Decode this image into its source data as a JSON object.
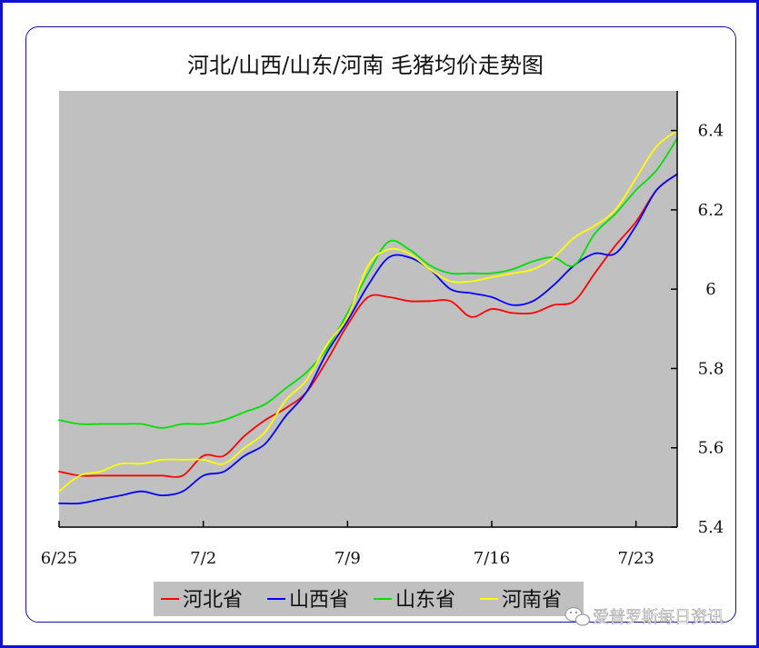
{
  "chart_data": {
    "type": "line",
    "title": "河北/山西/山东/河南 毛猪均价走势图",
    "x": [
      0,
      1,
      2,
      3,
      4,
      5,
      6,
      7,
      8,
      9,
      10,
      11,
      12,
      13,
      14,
      15,
      16,
      17,
      18,
      19,
      20,
      21,
      22,
      23,
      24,
      25,
      26,
      27,
      28,
      29,
      30
    ],
    "x_tick_positions": [
      0,
      7,
      14,
      21,
      28
    ],
    "x_tick_labels": [
      "6/25",
      "7/2",
      "7/9",
      "7/16",
      "7/23"
    ],
    "ylim": [
      5.4,
      6.5
    ],
    "y_ticks": [
      5.4,
      5.6,
      5.8,
      6,
      6.2,
      6.4
    ],
    "y_tick_labels": [
      "5.4",
      "5.6",
      "5.8",
      "6",
      "6.2",
      "6.4"
    ],
    "y_axis_side": "right",
    "background": "#c0c0c0",
    "legend_position": "bottom",
    "series": [
      {
        "name": "河北省",
        "color": "#ff0000",
        "values": [
          5.54,
          5.53,
          5.53,
          5.53,
          5.53,
          5.53,
          5.53,
          5.58,
          5.58,
          5.63,
          5.67,
          5.7,
          5.74,
          5.82,
          5.91,
          5.98,
          5.98,
          5.97,
          5.97,
          5.97,
          5.93,
          5.95,
          5.94,
          5.94,
          5.96,
          5.97,
          6.04,
          6.11,
          6.17,
          6.25,
          6.29
        ]
      },
      {
        "name": "山西省",
        "color": "#0000ff",
        "values": [
          5.46,
          5.46,
          5.47,
          5.48,
          5.49,
          5.48,
          5.49,
          5.53,
          5.54,
          5.58,
          5.61,
          5.68,
          5.74,
          5.84,
          5.92,
          6.01,
          6.08,
          6.08,
          6.05,
          6.0,
          5.99,
          5.98,
          5.96,
          5.97,
          6.01,
          6.06,
          6.09,
          6.09,
          6.16,
          6.25,
          6.29
        ]
      },
      {
        "name": "山东省",
        "color": "#00e000",
        "values": [
          5.67,
          5.66,
          5.66,
          5.66,
          5.66,
          5.65,
          5.66,
          5.66,
          5.67,
          5.69,
          5.71,
          5.75,
          5.79,
          5.85,
          5.94,
          6.04,
          6.12,
          6.1,
          6.06,
          6.04,
          6.04,
          6.04,
          6.05,
          6.07,
          6.08,
          6.06,
          6.14,
          6.19,
          6.25,
          6.3,
          6.38
        ]
      },
      {
        "name": "河南省",
        "color": "#ffff00",
        "values": [
          5.49,
          5.53,
          5.54,
          5.56,
          5.56,
          5.57,
          5.57,
          5.57,
          5.56,
          5.6,
          5.64,
          5.72,
          5.77,
          5.86,
          5.93,
          6.06,
          6.1,
          6.09,
          6.05,
          6.02,
          6.02,
          6.03,
          6.04,
          6.05,
          6.08,
          6.13,
          6.16,
          6.2,
          6.28,
          6.36,
          6.4
        ]
      }
    ]
  },
  "watermark": {
    "icon": "wechat-icon",
    "text": "爱普罗斯每日资讯"
  }
}
